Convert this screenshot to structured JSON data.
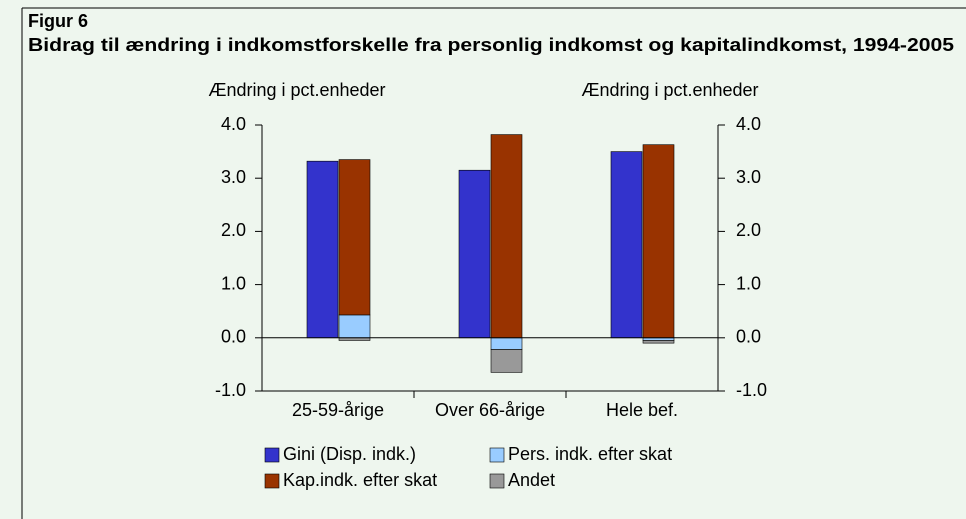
{
  "chart_data": {
    "type": "bar",
    "figure_label": "Figur 6",
    "title": "Bidrag til ændring i indkomstforskelle fra personlig indkomst og kapitalindkomst, 1994-2005",
    "y_label": "Ændring i pct.enheder",
    "y2_label": "Ændring i pct.enheder",
    "categories": [
      "25-59-årige",
      "Over 66-årige",
      "Hele bef."
    ],
    "series": [
      {
        "name": "Gini (Disp. indk.)",
        "color": "#3333cc",
        "bar": 0,
        "values": [
          3.32,
          3.15,
          3.5
        ]
      },
      {
        "name": "Pers. indk. efter skat",
        "color": "#99ccff",
        "bar": 1,
        "values": [
          0.43,
          -0.22,
          -0.05
        ]
      },
      {
        "name": "Kap.indk. efter skat",
        "color": "#993300",
        "bar": 1,
        "values": [
          2.92,
          3.82,
          3.63
        ]
      },
      {
        "name": "Andet",
        "color": "#999999",
        "bar": 1,
        "values": [
          -0.05,
          -0.43,
          -0.05
        ]
      }
    ],
    "ylim": [
      -1,
      4
    ],
    "yticks": [
      {
        "value": -1,
        "label": "-1.0"
      },
      {
        "value": 0,
        "label": "0.0"
      },
      {
        "value": 1,
        "label": "1.0"
      },
      {
        "value": 2,
        "label": "2.0"
      },
      {
        "value": 3,
        "label": "3.0"
      },
      {
        "value": 4,
        "label": "4.0"
      }
    ],
    "y2lim": [
      -1,
      4
    ],
    "y2ticks": [
      {
        "value": -1,
        "label": "-1.0"
      },
      {
        "value": 0,
        "label": "0.0"
      },
      {
        "value": 1,
        "label": "1.0"
      },
      {
        "value": 2,
        "label": "2.0"
      },
      {
        "value": 3,
        "label": "3.0"
      },
      {
        "value": 4,
        "label": "4.0"
      }
    ],
    "background": "#eef6ee"
  }
}
